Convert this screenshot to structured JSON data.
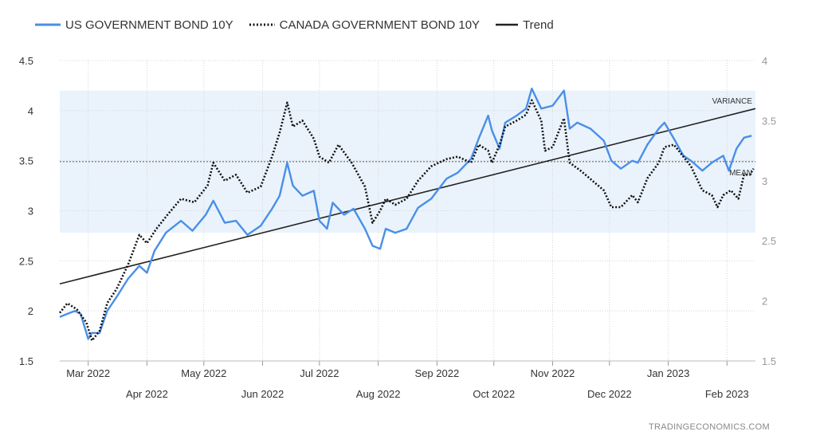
{
  "legend": {
    "us_label": "US GOVERNMENT BOND 10Y",
    "ca_label": "CANADA GOVERNMENT BOND 10Y",
    "trend_label": "Trend"
  },
  "credit": "TRADINGECONOMICS.COM",
  "colors": {
    "us": "#4a8fe7",
    "ca": "#111111",
    "trend": "#222222",
    "band": "#eaf3fc",
    "grid": "#d4d4d4"
  },
  "chart_data": {
    "type": "line",
    "x_axis": {
      "start": "2022-02-14",
      "end": "2023-02-16",
      "ticks_row1": [
        {
          "date": "2022-03-01",
          "label": "Mar 2022"
        },
        {
          "date": "2022-05-01",
          "label": "May 2022"
        },
        {
          "date": "2022-07-01",
          "label": "Jul 2022"
        },
        {
          "date": "2022-09-01",
          "label": "Sep 2022"
        },
        {
          "date": "2022-11-01",
          "label": "Nov 2022"
        },
        {
          "date": "2023-01-01",
          "label": "Jan 2023"
        }
      ],
      "ticks_row2": [
        {
          "date": "2022-04-01",
          "label": "Apr 2022"
        },
        {
          "date": "2022-06-01",
          "label": "Jun 2022"
        },
        {
          "date": "2022-08-01",
          "label": "Aug 2022"
        },
        {
          "date": "2022-10-01",
          "label": "Oct 2022"
        },
        {
          "date": "2022-12-01",
          "label": "Dec 2022"
        },
        {
          "date": "2023-02-01",
          "label": "Feb 2023"
        }
      ]
    },
    "y_left": {
      "range": [
        1.5,
        4.5
      ],
      "ticks": [
        "1.5",
        "2",
        "2.5",
        "3",
        "3.5",
        "4",
        "4.5"
      ]
    },
    "y_right": {
      "range": [
        1.5,
        4
      ],
      "ticks": [
        "1.5",
        "2",
        "2.5",
        "3",
        "3.5",
        "4"
      ]
    },
    "grid": true,
    "legend_position": "top-left",
    "band": {
      "axis": "left",
      "from": 2.78,
      "to": 4.2,
      "mean": 3.49
    },
    "annotations": {
      "variance": "VARIANCE",
      "mean": "MEAN"
    },
    "trend": {
      "axis": "left",
      "points": [
        {
          "x": "2022-02-14",
          "y": 2.27
        },
        {
          "x": "2023-02-16",
          "y": 4.02
        }
      ]
    },
    "series": [
      {
        "name": "US GOVERNMENT BOND 10Y",
        "axis": "left",
        "style": "solid",
        "points": [
          {
            "x": "2022-02-14",
            "y": 1.94
          },
          {
            "x": "2022-02-18",
            "y": 1.97
          },
          {
            "x": "2022-02-22",
            "y": 2.0
          },
          {
            "x": "2022-02-25",
            "y": 1.97
          },
          {
            "x": "2022-03-01",
            "y": 1.72
          },
          {
            "x": "2022-03-03",
            "y": 1.78
          },
          {
            "x": "2022-03-07",
            "y": 1.78
          },
          {
            "x": "2022-03-11",
            "y": 2.0
          },
          {
            "x": "2022-03-16",
            "y": 2.14
          },
          {
            "x": "2022-03-22",
            "y": 2.32
          },
          {
            "x": "2022-03-28",
            "y": 2.45
          },
          {
            "x": "2022-04-01",
            "y": 2.38
          },
          {
            "x": "2022-04-05",
            "y": 2.6
          },
          {
            "x": "2022-04-11",
            "y": 2.78
          },
          {
            "x": "2022-04-19",
            "y": 2.9
          },
          {
            "x": "2022-04-25",
            "y": 2.8
          },
          {
            "x": "2022-05-02",
            "y": 2.96
          },
          {
            "x": "2022-05-06",
            "y": 3.1
          },
          {
            "x": "2022-05-12",
            "y": 2.88
          },
          {
            "x": "2022-05-18",
            "y": 2.9
          },
          {
            "x": "2022-05-24",
            "y": 2.76
          },
          {
            "x": "2022-05-31",
            "y": 2.85
          },
          {
            "x": "2022-06-06",
            "y": 3.02
          },
          {
            "x": "2022-06-10",
            "y": 3.15
          },
          {
            "x": "2022-06-14",
            "y": 3.48
          },
          {
            "x": "2022-06-17",
            "y": 3.25
          },
          {
            "x": "2022-06-22",
            "y": 3.15
          },
          {
            "x": "2022-06-28",
            "y": 3.2
          },
          {
            "x": "2022-07-01",
            "y": 2.9
          },
          {
            "x": "2022-07-05",
            "y": 2.82
          },
          {
            "x": "2022-07-08",
            "y": 3.08
          },
          {
            "x": "2022-07-14",
            "y": 2.96
          },
          {
            "x": "2022-07-19",
            "y": 3.02
          },
          {
            "x": "2022-07-25",
            "y": 2.82
          },
          {
            "x": "2022-07-29",
            "y": 2.65
          },
          {
            "x": "2022-08-02",
            "y": 2.62
          },
          {
            "x": "2022-08-05",
            "y": 2.82
          },
          {
            "x": "2022-08-10",
            "y": 2.78
          },
          {
            "x": "2022-08-16",
            "y": 2.82
          },
          {
            "x": "2022-08-22",
            "y": 3.03
          },
          {
            "x": "2022-08-29",
            "y": 3.12
          },
          {
            "x": "2022-09-06",
            "y": 3.32
          },
          {
            "x": "2022-09-12",
            "y": 3.38
          },
          {
            "x": "2022-09-19",
            "y": 3.52
          },
          {
            "x": "2022-09-23",
            "y": 3.72
          },
          {
            "x": "2022-09-28",
            "y": 3.95
          },
          {
            "x": "2022-09-30",
            "y": 3.8
          },
          {
            "x": "2022-10-04",
            "y": 3.62
          },
          {
            "x": "2022-10-07",
            "y": 3.88
          },
          {
            "x": "2022-10-13",
            "y": 3.95
          },
          {
            "x": "2022-10-18",
            "y": 4.02
          },
          {
            "x": "2022-10-21",
            "y": 4.22
          },
          {
            "x": "2022-10-26",
            "y": 4.02
          },
          {
            "x": "2022-11-01",
            "y": 4.05
          },
          {
            "x": "2022-11-07",
            "y": 4.2
          },
          {
            "x": "2022-11-10",
            "y": 3.82
          },
          {
            "x": "2022-11-14",
            "y": 3.88
          },
          {
            "x": "2022-11-21",
            "y": 3.82
          },
          {
            "x": "2022-11-28",
            "y": 3.7
          },
          {
            "x": "2022-12-02",
            "y": 3.5
          },
          {
            "x": "2022-12-07",
            "y": 3.42
          },
          {
            "x": "2022-12-13",
            "y": 3.5
          },
          {
            "x": "2022-12-16",
            "y": 3.48
          },
          {
            "x": "2022-12-21",
            "y": 3.66
          },
          {
            "x": "2022-12-27",
            "y": 3.82
          },
          {
            "x": "2022-12-30",
            "y": 3.88
          },
          {
            "x": "2023-01-04",
            "y": 3.72
          },
          {
            "x": "2023-01-09",
            "y": 3.55
          },
          {
            "x": "2023-01-13",
            "y": 3.5
          },
          {
            "x": "2023-01-19",
            "y": 3.4
          },
          {
            "x": "2023-01-24",
            "y": 3.48
          },
          {
            "x": "2023-01-30",
            "y": 3.55
          },
          {
            "x": "2023-02-02",
            "y": 3.4
          },
          {
            "x": "2023-02-06",
            "y": 3.62
          },
          {
            "x": "2023-02-10",
            "y": 3.73
          },
          {
            "x": "2023-02-14",
            "y": 3.75
          }
        ]
      },
      {
        "name": "CANADA GOVERNMENT BOND 10Y",
        "axis": "right",
        "style": "dotted",
        "points": [
          {
            "x": "2022-02-14",
            "y": 1.9
          },
          {
            "x": "2022-02-18",
            "y": 1.98
          },
          {
            "x": "2022-02-23",
            "y": 1.93
          },
          {
            "x": "2022-02-28",
            "y": 1.82
          },
          {
            "x": "2022-03-03",
            "y": 1.67
          },
          {
            "x": "2022-03-07",
            "y": 1.75
          },
          {
            "x": "2022-03-11",
            "y": 1.98
          },
          {
            "x": "2022-03-16",
            "y": 2.1
          },
          {
            "x": "2022-03-22",
            "y": 2.3
          },
          {
            "x": "2022-03-28",
            "y": 2.55
          },
          {
            "x": "2022-04-01",
            "y": 2.48
          },
          {
            "x": "2022-04-06",
            "y": 2.6
          },
          {
            "x": "2022-04-12",
            "y": 2.72
          },
          {
            "x": "2022-04-19",
            "y": 2.85
          },
          {
            "x": "2022-04-26",
            "y": 2.82
          },
          {
            "x": "2022-05-03",
            "y": 2.96
          },
          {
            "x": "2022-05-06",
            "y": 3.15
          },
          {
            "x": "2022-05-12",
            "y": 3.0
          },
          {
            "x": "2022-05-18",
            "y": 3.05
          },
          {
            "x": "2022-05-24",
            "y": 2.9
          },
          {
            "x": "2022-05-31",
            "y": 2.95
          },
          {
            "x": "2022-06-06",
            "y": 3.2
          },
          {
            "x": "2022-06-10",
            "y": 3.4
          },
          {
            "x": "2022-06-14",
            "y": 3.65
          },
          {
            "x": "2022-06-17",
            "y": 3.45
          },
          {
            "x": "2022-06-22",
            "y": 3.5
          },
          {
            "x": "2022-06-28",
            "y": 3.35
          },
          {
            "x": "2022-07-01",
            "y": 3.2
          },
          {
            "x": "2022-07-06",
            "y": 3.15
          },
          {
            "x": "2022-07-11",
            "y": 3.3
          },
          {
            "x": "2022-07-18",
            "y": 3.15
          },
          {
            "x": "2022-07-25",
            "y": 2.95
          },
          {
            "x": "2022-07-29",
            "y": 2.65
          },
          {
            "x": "2022-08-02",
            "y": 2.75
          },
          {
            "x": "2022-08-05",
            "y": 2.85
          },
          {
            "x": "2022-08-10",
            "y": 2.8
          },
          {
            "x": "2022-08-16",
            "y": 2.85
          },
          {
            "x": "2022-08-22",
            "y": 3.0
          },
          {
            "x": "2022-08-29",
            "y": 3.12
          },
          {
            "x": "2022-09-06",
            "y": 3.18
          },
          {
            "x": "2022-09-12",
            "y": 3.2
          },
          {
            "x": "2022-09-19",
            "y": 3.15
          },
          {
            "x": "2022-09-23",
            "y": 3.3
          },
          {
            "x": "2022-09-28",
            "y": 3.25
          },
          {
            "x": "2022-09-30",
            "y": 3.15
          },
          {
            "x": "2022-10-04",
            "y": 3.3
          },
          {
            "x": "2022-10-07",
            "y": 3.45
          },
          {
            "x": "2022-10-13",
            "y": 3.5
          },
          {
            "x": "2022-10-18",
            "y": 3.55
          },
          {
            "x": "2022-10-21",
            "y": 3.67
          },
          {
            "x": "2022-10-26",
            "y": 3.5
          },
          {
            "x": "2022-10-28",
            "y": 3.25
          },
          {
            "x": "2022-11-01",
            "y": 3.28
          },
          {
            "x": "2022-11-07",
            "y": 3.52
          },
          {
            "x": "2022-11-10",
            "y": 3.15
          },
          {
            "x": "2022-11-16",
            "y": 3.08
          },
          {
            "x": "2022-11-22",
            "y": 3.0
          },
          {
            "x": "2022-11-28",
            "y": 2.92
          },
          {
            "x": "2022-12-02",
            "y": 2.78
          },
          {
            "x": "2022-12-07",
            "y": 2.78
          },
          {
            "x": "2022-12-13",
            "y": 2.88
          },
          {
            "x": "2022-12-16",
            "y": 2.82
          },
          {
            "x": "2022-12-21",
            "y": 3.02
          },
          {
            "x": "2022-12-27",
            "y": 3.15
          },
          {
            "x": "2022-12-30",
            "y": 3.28
          },
          {
            "x": "2023-01-04",
            "y": 3.3
          },
          {
            "x": "2023-01-09",
            "y": 3.2
          },
          {
            "x": "2023-01-13",
            "y": 3.12
          },
          {
            "x": "2023-01-19",
            "y": 2.92
          },
          {
            "x": "2023-01-24",
            "y": 2.88
          },
          {
            "x": "2023-01-27",
            "y": 2.78
          },
          {
            "x": "2023-01-30",
            "y": 2.88
          },
          {
            "x": "2023-02-03",
            "y": 2.92
          },
          {
            "x": "2023-02-07",
            "y": 2.85
          },
          {
            "x": "2023-02-10",
            "y": 3.05
          },
          {
            "x": "2023-02-13",
            "y": 3.05
          },
          {
            "x": "2023-02-15",
            "y": 3.1
          }
        ]
      }
    ]
  }
}
